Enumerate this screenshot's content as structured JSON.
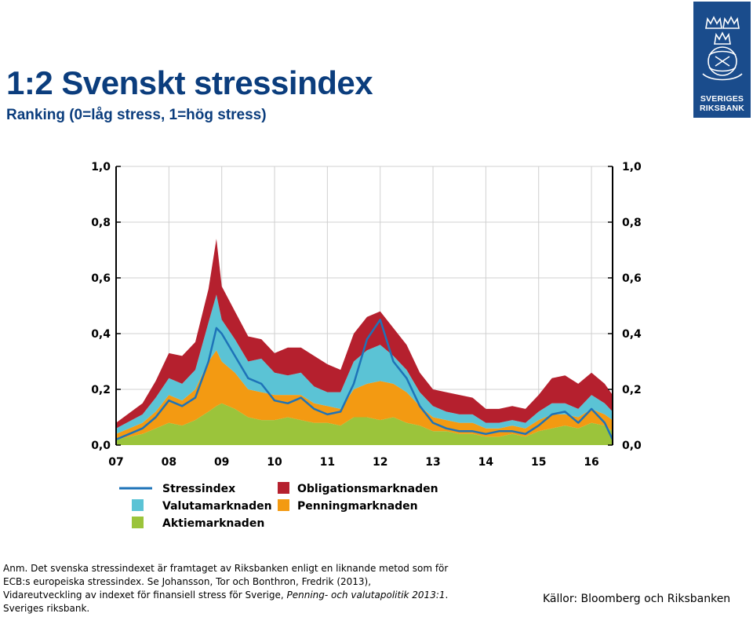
{
  "header": {
    "title": "1:2 Svenskt stressindex",
    "subtitle": "Ranking (0=låg stress, 1=hög stress)"
  },
  "logo": {
    "line1": "SVERIGES",
    "line2": "RIKSBANK",
    "color": "#1a4c8c"
  },
  "colors": {
    "stressindex": "#1e73b8",
    "valutamarknaden": "#5bc3d5",
    "aktiemarknaden": "#9bc43b",
    "obligationsmarknaden": "#b5202e",
    "penningmarknaden": "#f39a12",
    "title": "#0b3d7d"
  },
  "chart_data": {
    "type": "area",
    "stacked": true,
    "title": "1:2 Svenskt stressindex",
    "subtitle": "Ranking (0=låg stress, 1=hög stress)",
    "xlabel": "",
    "ylabel": "",
    "x_range": [
      2007.0,
      2016.4
    ],
    "ylim": [
      0,
      1
    ],
    "grid": true,
    "x_ticks": [
      2007,
      2008,
      2009,
      2010,
      2011,
      2012,
      2013,
      2014,
      2015,
      2016
    ],
    "x_tick_labels": [
      "07",
      "08",
      "09",
      "10",
      "11",
      "12",
      "13",
      "14",
      "15",
      "16"
    ],
    "y_ticks": [
      0,
      0.2,
      0.4,
      0.6,
      0.8,
      1.0
    ],
    "y_tick_labels_left": [
      "0,0",
      "0,2",
      "0,4",
      "0,6",
      "0,8",
      "1,0"
    ],
    "y_tick_labels_right": [
      "0,0",
      "0,2",
      "0,4",
      "0,6",
      "0,8",
      "1,0"
    ],
    "dates": [
      2007.0,
      2007.5,
      2007.75,
      2008.0,
      2008.25,
      2008.5,
      2008.75,
      2008.9,
      2009.0,
      2009.25,
      2009.5,
      2009.75,
      2010.0,
      2010.25,
      2010.5,
      2010.75,
      2011.0,
      2011.25,
      2011.5,
      2011.75,
      2012.0,
      2012.25,
      2012.5,
      2012.75,
      2013.0,
      2013.25,
      2013.5,
      2013.75,
      2014.0,
      2014.25,
      2014.5,
      2014.75,
      2015.0,
      2015.25,
      2015.5,
      2015.75,
      2016.0,
      2016.25,
      2016.4
    ],
    "series": [
      {
        "name": "Aktiemarknaden",
        "values": [
          0.02,
          0.04,
          0.06,
          0.08,
          0.07,
          0.09,
          0.12,
          0.14,
          0.15,
          0.13,
          0.1,
          0.09,
          0.09,
          0.1,
          0.09,
          0.08,
          0.08,
          0.07,
          0.1,
          0.1,
          0.09,
          0.1,
          0.08,
          0.07,
          0.05,
          0.05,
          0.04,
          0.04,
          0.03,
          0.03,
          0.04,
          0.03,
          0.05,
          0.06,
          0.07,
          0.06,
          0.08,
          0.07,
          0.05
        ]
      },
      {
        "name": "Penningmarknaden",
        "values": [
          0.02,
          0.04,
          0.06,
          0.1,
          0.09,
          0.11,
          0.18,
          0.2,
          0.15,
          0.13,
          0.1,
          0.1,
          0.09,
          0.08,
          0.09,
          0.07,
          0.06,
          0.06,
          0.1,
          0.12,
          0.14,
          0.12,
          0.11,
          0.07,
          0.05,
          0.04,
          0.04,
          0.04,
          0.03,
          0.03,
          0.03,
          0.03,
          0.04,
          0.05,
          0.04,
          0.04,
          0.05,
          0.04,
          0.04
        ]
      },
      {
        "name": "Valutamarknaden",
        "values": [
          0.02,
          0.03,
          0.05,
          0.06,
          0.06,
          0.07,
          0.14,
          0.2,
          0.15,
          0.12,
          0.1,
          0.12,
          0.08,
          0.07,
          0.08,
          0.06,
          0.05,
          0.06,
          0.1,
          0.12,
          0.13,
          0.1,
          0.08,
          0.05,
          0.04,
          0.03,
          0.03,
          0.03,
          0.02,
          0.02,
          0.02,
          0.02,
          0.03,
          0.04,
          0.04,
          0.03,
          0.05,
          0.04,
          0.03
        ]
      },
      {
        "name": "Obligationsmarknaden",
        "values": [
          0.02,
          0.04,
          0.06,
          0.09,
          0.1,
          0.1,
          0.12,
          0.2,
          0.12,
          0.1,
          0.09,
          0.07,
          0.07,
          0.1,
          0.09,
          0.11,
          0.1,
          0.08,
          0.1,
          0.12,
          0.12,
          0.1,
          0.09,
          0.07,
          0.06,
          0.07,
          0.07,
          0.06,
          0.05,
          0.05,
          0.05,
          0.05,
          0.06,
          0.09,
          0.1,
          0.09,
          0.08,
          0.07,
          0.06
        ]
      },
      {
        "name": "Stressindex",
        "values": [
          0.02,
          0.06,
          0.1,
          0.16,
          0.14,
          0.17,
          0.3,
          0.42,
          0.4,
          0.32,
          0.24,
          0.22,
          0.16,
          0.15,
          0.17,
          0.13,
          0.11,
          0.12,
          0.22,
          0.38,
          0.45,
          0.3,
          0.24,
          0.14,
          0.08,
          0.06,
          0.05,
          0.05,
          0.04,
          0.05,
          0.05,
          0.04,
          0.07,
          0.11,
          0.12,
          0.08,
          0.13,
          0.08,
          0.02
        ]
      }
    ],
    "legend": [
      {
        "label": "Stressindex",
        "kind": "line",
        "color": "#1e73b8"
      },
      {
        "label": "Obligationsmarknaden",
        "kind": "box",
        "color": "#b5202e"
      },
      {
        "label": "Valutamarknaden",
        "kind": "box",
        "color": "#5bc3d5"
      },
      {
        "label": "Penningmarknaden",
        "kind": "box",
        "color": "#f39a12"
      },
      {
        "label": "Aktiemarknaden",
        "kind": "box",
        "color": "#9bc43b"
      }
    ],
    "legend_position": "bottom"
  },
  "note": {
    "line1": "Anm. Det svenska stressindexet är framtaget av Riksbanken enligt en liknande metod som för",
    "line2": "ECB:s europeiska stressindex. Se Johansson, Tor och Bonthron, Fredrik (2013),",
    "line3a": "Vidareutveckling av indexet för finansiell stress för Sverige, ",
    "line3b": "Penning- och valutapolitik 2013:1",
    "line3c": ".",
    "line4": "Sveriges riksbank."
  },
  "source": "Källor: Bloomberg och Riksbanken"
}
